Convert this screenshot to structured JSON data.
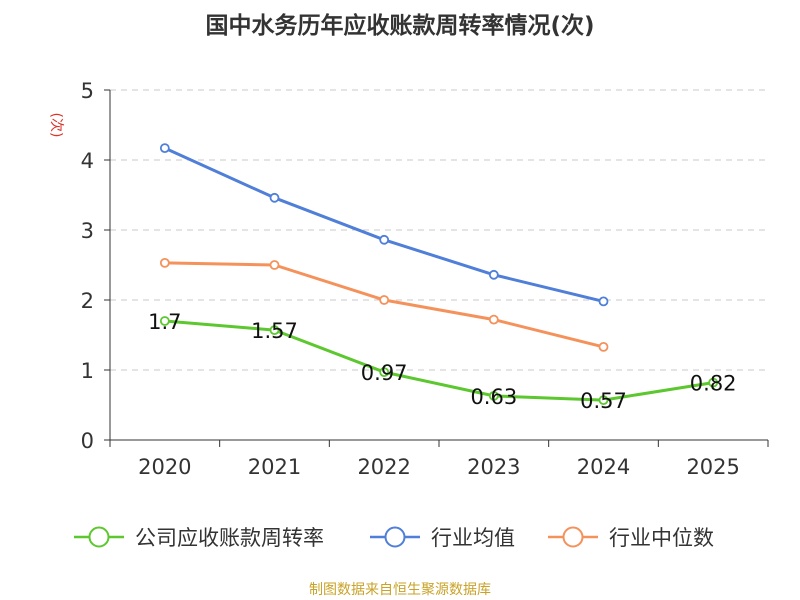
{
  "chart_data": {
    "type": "line",
    "title": "国中水务历年应收账款周转率情况(次)",
    "ylabel": "(次)",
    "xlabel": "",
    "categories": [
      "2020",
      "2021",
      "2022",
      "2023",
      "2024",
      "2025"
    ],
    "ylim": [
      0,
      5
    ],
    "yticks": [
      0,
      1,
      2,
      3,
      4,
      5
    ],
    "grid": true,
    "legend_position": "bottom",
    "series": [
      {
        "name": "公司应收账款周转率",
        "color": "#5cc72e",
        "values": [
          1.7,
          1.57,
          0.97,
          0.63,
          0.57,
          0.82
        ],
        "labels": [
          "1.7",
          "1.57",
          "0.97",
          "0.63",
          "0.57",
          "0.82"
        ]
      },
      {
        "name": "行业均值",
        "color": "#4f7fd8",
        "values": [
          4.17,
          3.46,
          2.86,
          2.36,
          1.98,
          null
        ]
      },
      {
        "name": "行业中位数",
        "color": "#f5915a",
        "values": [
          2.53,
          2.5,
          2.0,
          1.72,
          1.33,
          null
        ]
      }
    ]
  },
  "source": "制图数据来自恒生聚源数据库"
}
